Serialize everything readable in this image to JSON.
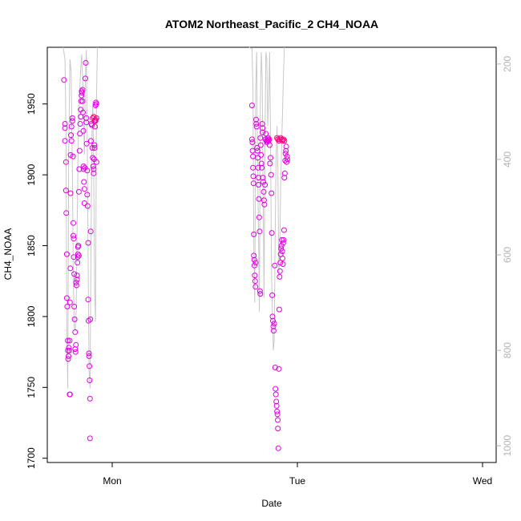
{
  "chart_data": {
    "type": "scatter",
    "title": "ATOM2 Northeast_Pacific_2 CH4_NOAA",
    "xlabel": "Date",
    "ylabel": "CH4_NOAA",
    "x_ticks": [
      "Mon",
      "Tue",
      "Wed"
    ],
    "x_range_days": [
      -0.29,
      1.09
    ],
    "y_ticks": [
      1700,
      1750,
      1800,
      1850,
      1900,
      1950
    ],
    "ylim": [
      1697,
      1990
    ],
    "y2_ticks": [
      200,
      400,
      600,
      800,
      1000
    ],
    "y2lim": [
      1035,
      165
    ],
    "y2_reversed": true,
    "colors": {
      "points": "#e100e1",
      "points_highlight": "#ff0080",
      "line": "#c8c8c8",
      "right_axis": "#b3b3b3"
    },
    "series": [
      {
        "role": "points",
        "values": [
          [
            -0.26,
            1967
          ],
          [
            -0.255,
            1936
          ],
          [
            -0.255,
            1933
          ],
          [
            -0.255,
            1924
          ],
          [
            -0.25,
            1909
          ],
          [
            -0.25,
            1889
          ],
          [
            -0.248,
            1873
          ],
          [
            -0.245,
            1844
          ],
          [
            -0.245,
            1813
          ],
          [
            -0.243,
            1807
          ],
          [
            -0.24,
            1783
          ],
          [
            -0.24,
            1776
          ],
          [
            -0.238,
            1770
          ],
          [
            -0.236,
            1772
          ],
          [
            -0.234,
            1778
          ],
          [
            -0.232,
            1776
          ],
          [
            -0.23,
            1783
          ],
          [
            -0.23,
            1745
          ],
          [
            -0.228,
            1745
          ],
          [
            -0.228,
            1810
          ],
          [
            -0.226,
            1834
          ],
          [
            -0.225,
            1887
          ],
          [
            -0.225,
            1914
          ],
          [
            -0.223,
            1928
          ],
          [
            -0.22,
            1934
          ],
          [
            -0.22,
            1924
          ],
          [
            -0.215,
            1940
          ],
          [
            -0.215,
            1938
          ],
          [
            -0.212,
            1913
          ],
          [
            -0.21,
            1866
          ],
          [
            -0.21,
            1857
          ],
          [
            -0.208,
            1855
          ],
          [
            -0.208,
            1842
          ],
          [
            -0.205,
            1830
          ],
          [
            -0.205,
            1807
          ],
          [
            -0.203,
            1798
          ],
          [
            -0.2,
            1789
          ],
          [
            -0.2,
            1777
          ],
          [
            -0.198,
            1775
          ],
          [
            -0.196,
            1780
          ],
          [
            -0.195,
            1824
          ],
          [
            -0.193,
            1822
          ],
          [
            -0.19,
            1826
          ],
          [
            -0.19,
            1829
          ],
          [
            -0.188,
            1838
          ],
          [
            -0.186,
            1842
          ],
          [
            -0.185,
            1844
          ],
          [
            -0.185,
            1849
          ],
          [
            -0.183,
            1850
          ],
          [
            -0.18,
            1843
          ],
          [
            -0.18,
            1888
          ],
          [
            -0.178,
            1904
          ],
          [
            -0.176,
            1917
          ],
          [
            -0.175,
            1929
          ],
          [
            -0.173,
            1936
          ],
          [
            -0.17,
            1941
          ],
          [
            -0.17,
            1946
          ],
          [
            -0.168,
            1952
          ],
          [
            -0.166,
            1956
          ],
          [
            -0.165,
            1959
          ],
          [
            -0.163,
            1958
          ],
          [
            -0.16,
            1960
          ],
          [
            -0.16,
            1952
          ],
          [
            -0.158,
            1944
          ],
          [
            -0.156,
            1931
          ],
          [
            -0.155,
            1906
          ],
          [
            -0.155,
            1904
          ],
          [
            -0.153,
            1895
          ],
          [
            -0.15,
            1890
          ],
          [
            -0.15,
            1880
          ],
          [
            -0.148,
            1905
          ],
          [
            -0.145,
            1968
          ],
          [
            -0.143,
            1979
          ],
          [
            -0.14,
            1940
          ],
          [
            -0.14,
            1937
          ],
          [
            -0.138,
            1922
          ],
          [
            -0.135,
            1903
          ],
          [
            -0.135,
            1886
          ],
          [
            -0.133,
            1878
          ],
          [
            -0.13,
            1852
          ],
          [
            -0.13,
            1812
          ],
          [
            -0.128,
            1797
          ],
          [
            -0.126,
            1774
          ],
          [
            -0.125,
            1772
          ],
          [
            -0.123,
            1765
          ],
          [
            -0.122,
            1755
          ],
          [
            -0.12,
            1742
          ],
          [
            -0.12,
            1714
          ],
          [
            -0.118,
            1798
          ],
          [
            -0.116,
            1860
          ],
          [
            -0.115,
            1924
          ],
          [
            -0.113,
            1936
          ],
          [
            -0.11,
            1935
          ],
          [
            -0.108,
            1919
          ],
          [
            -0.105,
            1912
          ],
          [
            -0.103,
            1906
          ],
          [
            -0.1,
            1904
          ],
          [
            -0.1,
            1901
          ],
          [
            -0.098,
            1911
          ],
          [
            -0.096,
            1921
          ],
          [
            -0.095,
            1919
          ],
          [
            -0.093,
            1934
          ],
          [
            -0.09,
            1938
          ],
          [
            -0.09,
            1949
          ],
          [
            -0.088,
            1951
          ],
          [
            -0.086,
            1950
          ],
          [
            -0.085,
            1909
          ],
          [
            0.755,
            1949
          ],
          [
            0.755,
            1925
          ],
          [
            0.757,
            1923
          ],
          [
            0.758,
            1917
          ],
          [
            0.76,
            1913
          ],
          [
            0.76,
            1905
          ],
          [
            0.762,
            1899
          ],
          [
            0.763,
            1894
          ],
          [
            0.765,
            1858
          ],
          [
            0.765,
            1843
          ],
          [
            0.767,
            1840
          ],
          [
            0.768,
            1836
          ],
          [
            0.77,
            1829
          ],
          [
            0.772,
            1825
          ],
          [
            0.774,
            1821
          ],
          [
            0.775,
            1838
          ],
          [
            0.777,
            1939
          ],
          [
            0.778,
            1936
          ],
          [
            0.78,
            1934
          ],
          [
            0.782,
            1919
          ],
          [
            0.784,
            1917
          ],
          [
            0.786,
            1912
          ],
          [
            0.788,
            1905
          ],
          [
            0.79,
            1898
          ],
          [
            0.79,
            1893
          ],
          [
            0.792,
            1883
          ],
          [
            0.794,
            1870
          ],
          [
            0.796,
            1860
          ],
          [
            0.798,
            1818
          ],
          [
            0.8,
            1816
          ],
          [
            0.8,
            1926
          ],
          [
            0.802,
            1921
          ],
          [
            0.804,
            1914
          ],
          [
            0.806,
            1908
          ],
          [
            0.808,
            1905
          ],
          [
            0.81,
            1936
          ],
          [
            0.812,
            1930
          ],
          [
            0.812,
            1933
          ],
          [
            0.814,
            1898
          ],
          [
            0.816,
            1895
          ],
          [
            0.818,
            1888
          ],
          [
            0.82,
            1882
          ],
          [
            0.822,
            1879
          ],
          [
            0.825,
            1893
          ],
          [
            0.828,
            1925
          ],
          [
            0.83,
            1929
          ],
          [
            0.832,
            1924
          ],
          [
            0.835,
            1923
          ],
          [
            0.838,
            1924
          ],
          [
            0.84,
            1925
          ],
          [
            0.842,
            1926
          ],
          [
            0.845,
            1924
          ],
          [
            0.848,
            1925
          ],
          [
            0.85,
            1921
          ],
          [
            0.852,
            1908
          ],
          [
            0.855,
            1912
          ],
          [
            0.858,
            1900
          ],
          [
            0.86,
            1887
          ],
          [
            0.862,
            1859
          ],
          [
            0.864,
            1815
          ],
          [
            0.866,
            1800
          ],
          [
            0.868,
            1797
          ],
          [
            0.87,
            1793
          ],
          [
            0.872,
            1790
          ],
          [
            0.875,
            1795
          ],
          [
            0.878,
            1836
          ],
          [
            0.88,
            1764
          ],
          [
            0.882,
            1749
          ],
          [
            0.884,
            1745
          ],
          [
            0.886,
            1740
          ],
          [
            0.888,
            1737
          ],
          [
            0.89,
            1733
          ],
          [
            0.892,
            1731
          ],
          [
            0.894,
            1727
          ],
          [
            0.895,
            1721
          ],
          [
            0.897,
            1707
          ],
          [
            0.9,
            1763
          ],
          [
            0.902,
            1805
          ],
          [
            0.904,
            1828
          ],
          [
            0.906,
            1832
          ],
          [
            0.908,
            1838
          ],
          [
            0.91,
            1844
          ],
          [
            0.912,
            1848
          ],
          [
            0.914,
            1850
          ],
          [
            0.916,
            1854
          ],
          [
            0.918,
            1846
          ],
          [
            0.92,
            1841
          ],
          [
            0.922,
            1837
          ],
          [
            0.924,
            1852
          ],
          [
            0.926,
            1854
          ],
          [
            0.928,
            1861
          ],
          [
            0.93,
            1898
          ],
          [
            0.932,
            1901
          ],
          [
            0.934,
            1910
          ],
          [
            0.936,
            1915
          ],
          [
            0.938,
            1917
          ],
          [
            0.94,
            1920
          ],
          [
            0.942,
            1909
          ],
          [
            0.944,
            1913
          ],
          [
            0.946,
            1911
          ]
        ]
      },
      {
        "role": "points_highlight",
        "values": [
          [
            -0.105,
            1940
          ],
          [
            -0.1,
            1941
          ],
          [
            -0.095,
            1938
          ],
          [
            -0.09,
            1939
          ],
          [
            -0.085,
            1940
          ],
          [
            0.89,
            1926
          ],
          [
            0.895,
            1925
          ],
          [
            0.9,
            1924
          ],
          [
            0.905,
            1925
          ],
          [
            0.91,
            1926
          ],
          [
            0.915,
            1925
          ],
          [
            0.92,
            1924
          ],
          [
            0.925,
            1925
          ],
          [
            0.93,
            1924
          ]
        ]
      },
      {
        "role": "line",
        "axis": "right",
        "values": [
          [
            -0.265,
            165
          ],
          [
            -0.255,
            190
          ],
          [
            -0.25,
            340
          ],
          [
            -0.245,
            760
          ],
          [
            -0.24,
            880
          ],
          [
            -0.235,
            380
          ],
          [
            -0.228,
            190
          ],
          [
            -0.222,
            215
          ],
          [
            -0.215,
            420
          ],
          [
            -0.21,
            650
          ],
          [
            -0.205,
            750
          ],
          [
            -0.2,
            760
          ],
          [
            -0.195,
            720
          ],
          [
            -0.19,
            560
          ],
          [
            -0.185,
            400
          ],
          [
            -0.18,
            300
          ],
          [
            -0.175,
            250
          ],
          [
            -0.17,
            210
          ],
          [
            -0.165,
            180
          ],
          [
            -0.16,
            230
          ],
          [
            -0.155,
            310
          ],
          [
            -0.15,
            390
          ],
          [
            -0.145,
            230
          ],
          [
            -0.14,
            170
          ],
          [
            -0.135,
            350
          ],
          [
            -0.13,
            620
          ],
          [
            -0.125,
            840
          ],
          [
            -0.12,
            880
          ],
          [
            -0.115,
            620
          ],
          [
            -0.11,
            360
          ],
          [
            -0.105,
            280
          ],
          [
            -0.1,
            420
          ],
          [
            -0.095,
            680
          ],
          [
            -0.09,
            740
          ],
          [
            -0.085,
            270
          ],
          [
            -0.08,
            165
          ],
          [
            0.74,
            165
          ],
          [
            0.755,
            168
          ],
          [
            0.76,
            250
          ],
          [
            0.765,
            600
          ],
          [
            0.77,
            700
          ],
          [
            0.775,
            250
          ],
          [
            0.78,
            175
          ],
          [
            0.785,
            400
          ],
          [
            0.79,
            550
          ],
          [
            0.795,
            720
          ],
          [
            0.8,
            280
          ],
          [
            0.805,
            175
          ],
          [
            0.81,
            230
          ],
          [
            0.815,
            470
          ],
          [
            0.82,
            690
          ],
          [
            0.825,
            360
          ],
          [
            0.83,
            175
          ],
          [
            0.835,
            190
          ],
          [
            0.84,
            330
          ],
          [
            0.845,
            270
          ],
          [
            0.85,
            175
          ],
          [
            0.855,
            350
          ],
          [
            0.86,
            630
          ],
          [
            0.865,
            720
          ],
          [
            0.87,
            800
          ],
          [
            0.875,
            780
          ],
          [
            0.88,
            560
          ],
          [
            0.885,
            400
          ],
          [
            0.89,
            330
          ],
          [
            0.895,
            420
          ],
          [
            0.9,
            650
          ],
          [
            0.905,
            580
          ],
          [
            0.91,
            450
          ],
          [
            0.915,
            370
          ],
          [
            0.92,
            300
          ],
          [
            0.925,
            220
          ],
          [
            0.93,
            165
          ]
        ]
      }
    ]
  }
}
